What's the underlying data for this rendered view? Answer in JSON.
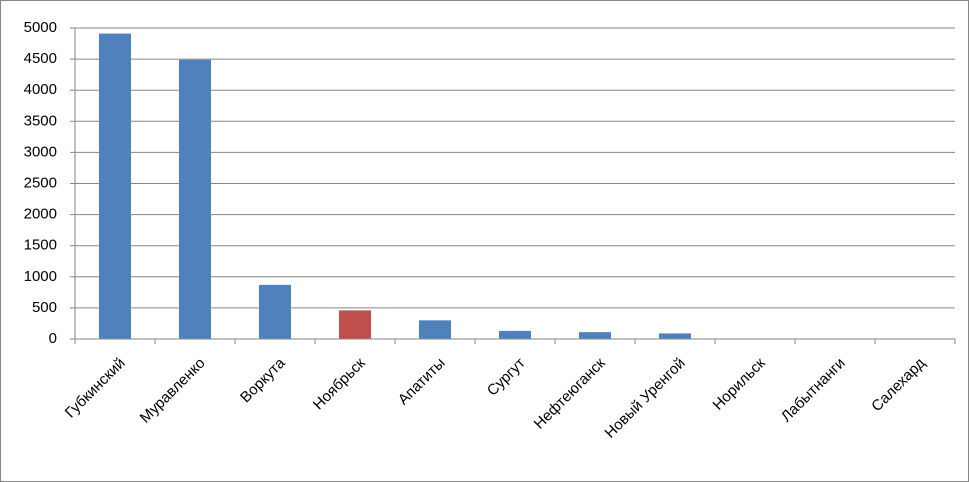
{
  "chart_data": {
    "type": "bar",
    "categories": [
      "Губкинский",
      "Муравленко",
      "Воркута",
      "Ноябрьск",
      "Апатиты",
      "Сургут",
      "Нефтеюганск",
      "Новый Уренгой",
      "Норильск",
      "Лабытнанги",
      "Салехард"
    ],
    "values": [
      4910,
      4490,
      870,
      460,
      300,
      130,
      110,
      90,
      0,
      0,
      0
    ],
    "colors": [
      "#4f81bd",
      "#4f81bd",
      "#4f81bd",
      "#c0504d",
      "#4f81bd",
      "#4f81bd",
      "#4f81bd",
      "#4f81bd",
      "#4f81bd",
      "#4f81bd",
      "#4f81bd"
    ],
    "ylim": [
      0,
      5000
    ],
    "yticks": [
      0,
      500,
      1000,
      1500,
      2000,
      2500,
      3000,
      3500,
      4000,
      4500,
      5000
    ],
    "grid": true
  }
}
